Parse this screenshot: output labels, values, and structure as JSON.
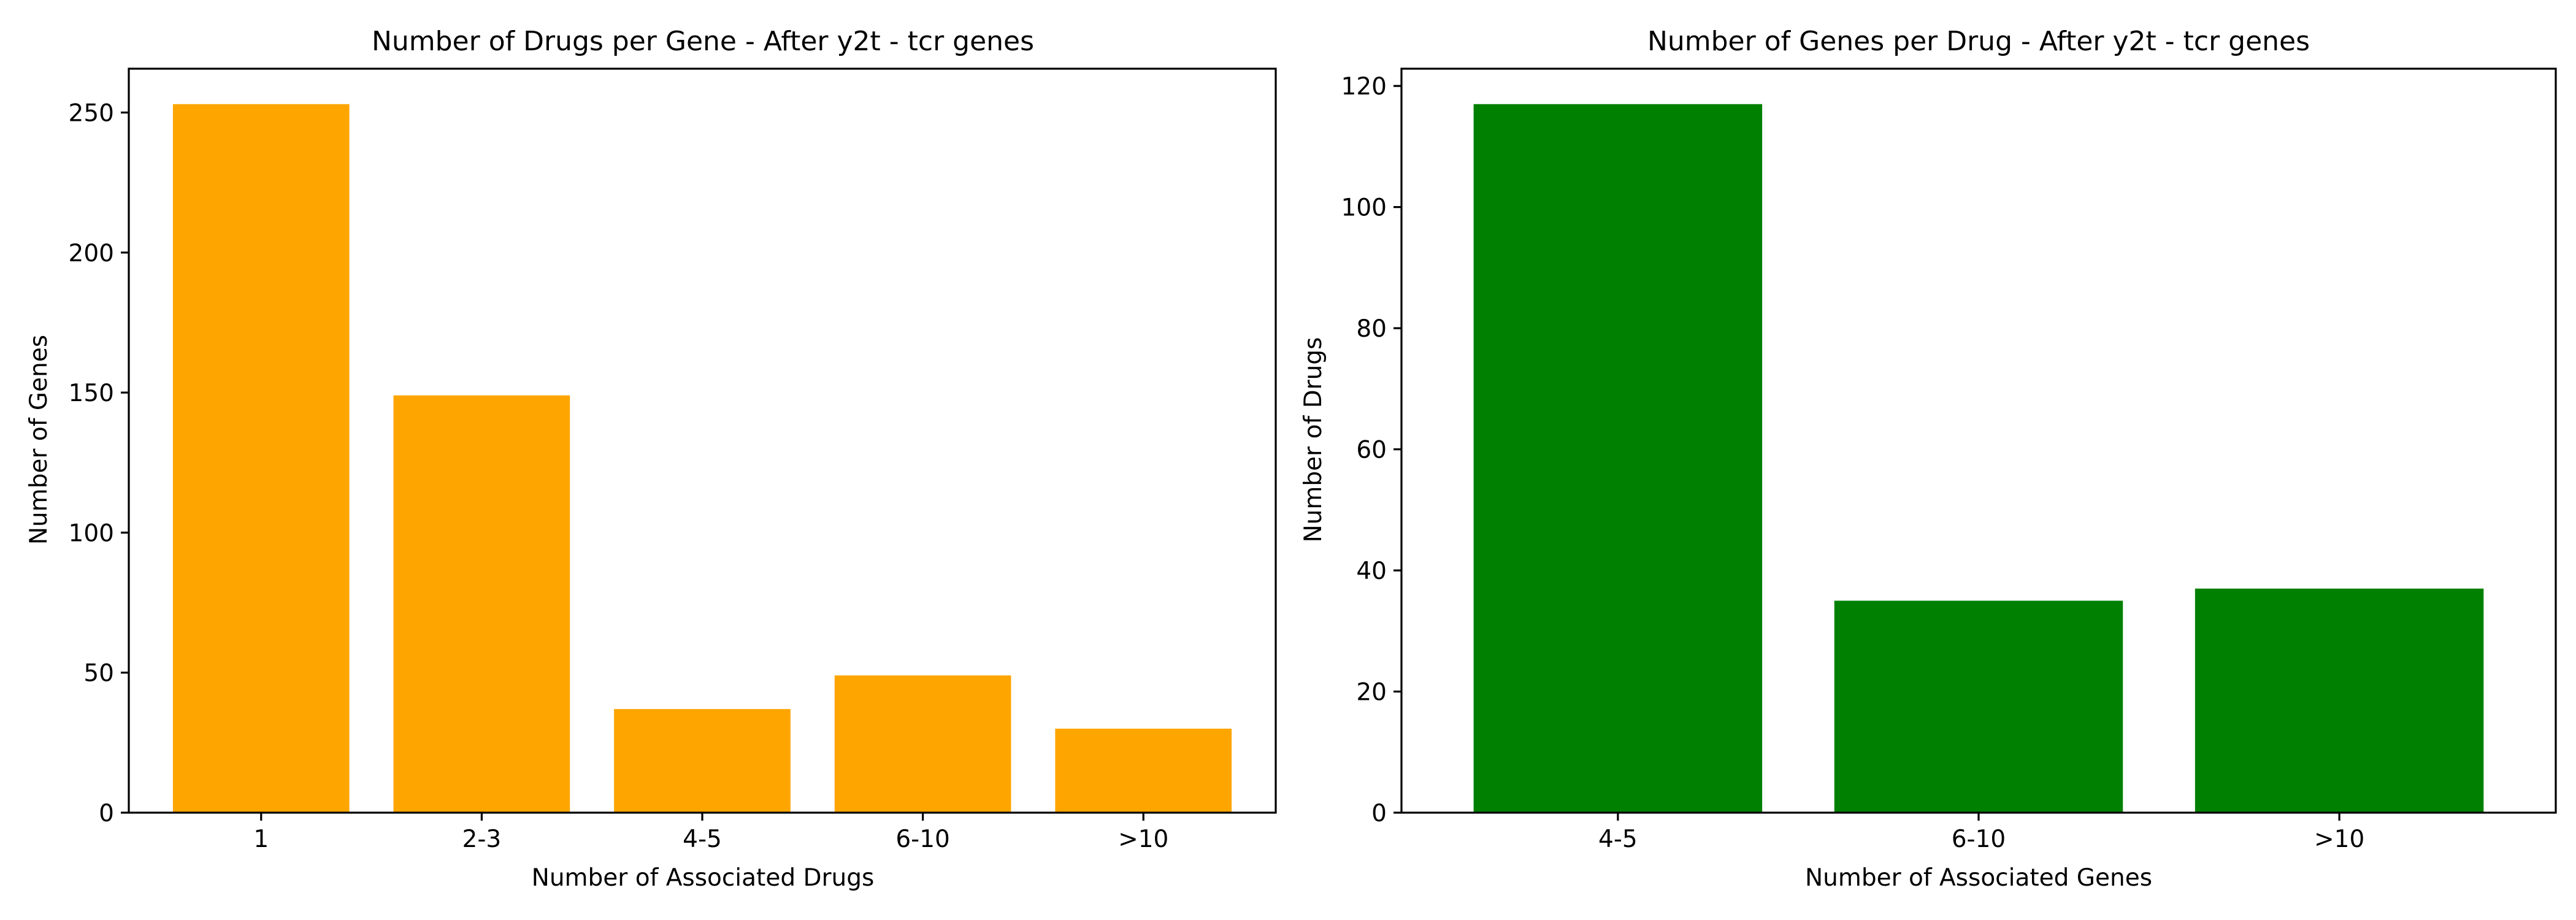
{
  "chart_data": [
    {
      "type": "bar",
      "title": "Number of Drugs per Gene - After y2t - tcr genes",
      "xlabel": "Number of Associated Drugs",
      "ylabel": "Number of Genes",
      "categories": [
        "1",
        "2-3",
        "4-5",
        "6-10",
        ">10"
      ],
      "values": [
        253,
        149,
        37,
        49,
        30
      ],
      "ylim": [
        0,
        265.65
      ],
      "yticks": [
        0,
        50,
        100,
        150,
        200,
        250
      ],
      "color": "#ffa500",
      "grid": false
    },
    {
      "type": "bar",
      "title": "Number of Genes per Drug - After y2t - tcr genes",
      "xlabel": "Number of Associated Genes",
      "ylabel": "Number of Drugs",
      "categories": [
        "4-5",
        "6-10",
        ">10"
      ],
      "values": [
        117,
        35,
        37
      ],
      "ylim": [
        0,
        122.85
      ],
      "yticks": [
        0,
        20,
        40,
        60,
        80,
        100,
        120
      ],
      "color": "#008000",
      "grid": false
    }
  ]
}
